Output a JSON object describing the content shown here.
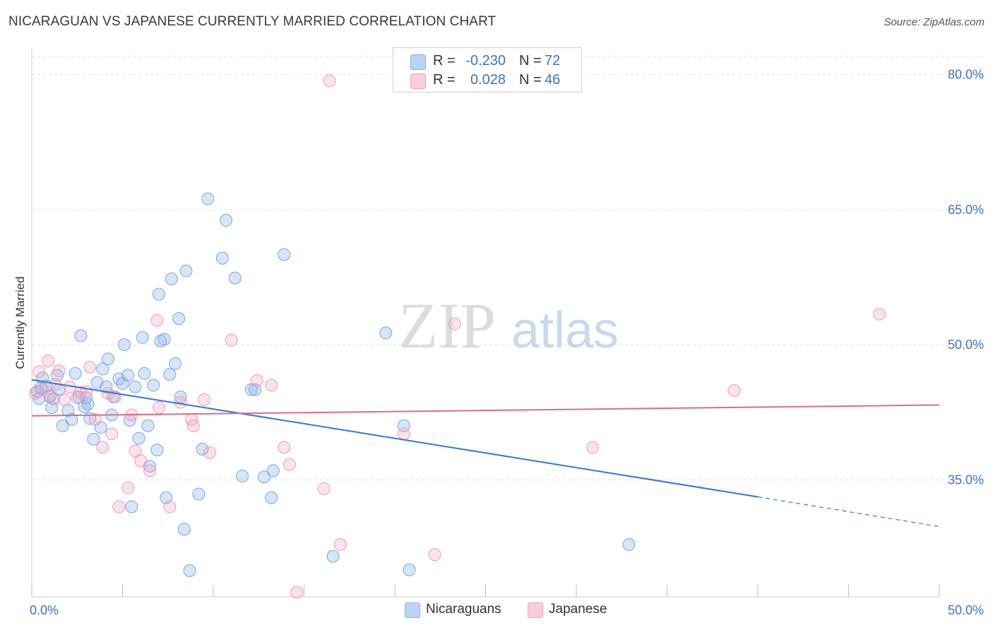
{
  "title": "NICARAGUAN VS JAPANESE CURRENTLY MARRIED CORRELATION CHART",
  "source": "Source: ZipAtlas.com",
  "watermark": {
    "zip": "ZIP",
    "atlas": "atlas"
  },
  "colors": {
    "blue": "#8ab4e8",
    "blue_line": "#3577d4",
    "pink": "#f0a3bd",
    "pink_line": "#e0698f",
    "axis_text": "#3b73c9"
  },
  "stats": [
    {
      "r_label": "R =",
      "r_value": "-0.230",
      "n_label": "N =",
      "n_value": "72"
    },
    {
      "r_label": "R =",
      "r_value": "0.028",
      "n_label": "N =",
      "n_value": "46"
    }
  ],
  "legend": [
    "Nicaraguans",
    "Japanese"
  ],
  "chart_data": {
    "type": "scatter",
    "title": "NICARAGUAN VS JAPANESE CURRENTLY MARRIED CORRELATION CHART",
    "xlabel": "",
    "ylabel": "Currently Married",
    "xlim": [
      0,
      50
    ],
    "ylim": [
      22,
      82
    ],
    "x_tick_labels": [
      "0.0%",
      "50.0%"
    ],
    "y_ticks": [
      35,
      50,
      65,
      80
    ],
    "y_tick_labels": [
      "35.0%",
      "50.0%",
      "65.0%",
      "80.0%"
    ],
    "grid": true,
    "series": [
      {
        "name": "Nicaraguans",
        "r": -0.23,
        "n": 72,
        "trend": {
          "x0": 0,
          "y0": 46.1,
          "x1": 40,
          "y1": 33.1,
          "dash_to_x": 50,
          "dash_to_y": 29.8
        },
        "points": [
          [
            0.3,
            44.8
          ],
          [
            0.5,
            45.2
          ],
          [
            0.6,
            46.3
          ],
          [
            0.8,
            45.4
          ],
          [
            1.0,
            44.3
          ],
          [
            1.1,
            43.0
          ],
          [
            1.2,
            44.0
          ],
          [
            1.4,
            46.6
          ],
          [
            1.7,
            41.0
          ],
          [
            2.0,
            42.7
          ],
          [
            2.2,
            41.7
          ],
          [
            2.4,
            46.8
          ],
          [
            2.6,
            44.2
          ],
          [
            2.7,
            51.0
          ],
          [
            2.9,
            43.1
          ],
          [
            3.1,
            43.4
          ],
          [
            3.2,
            41.8
          ],
          [
            3.4,
            39.5
          ],
          [
            3.6,
            45.8
          ],
          [
            3.8,
            40.8
          ],
          [
            3.9,
            47.3
          ],
          [
            4.1,
            45.3
          ],
          [
            4.2,
            48.4
          ],
          [
            4.4,
            42.2
          ],
          [
            4.5,
            44.2
          ],
          [
            4.8,
            46.2
          ],
          [
            5.0,
            45.7
          ],
          [
            5.1,
            50.0
          ],
          [
            5.3,
            46.6
          ],
          [
            5.4,
            41.6
          ],
          [
            5.5,
            32.0
          ],
          [
            5.7,
            45.3
          ],
          [
            5.9,
            39.6
          ],
          [
            6.1,
            50.8
          ],
          [
            6.2,
            46.8
          ],
          [
            6.4,
            41.0
          ],
          [
            6.5,
            36.5
          ],
          [
            6.7,
            45.5
          ],
          [
            6.9,
            38.3
          ],
          [
            7.0,
            55.6
          ],
          [
            7.1,
            50.4
          ],
          [
            7.3,
            50.6
          ],
          [
            7.4,
            33.0
          ],
          [
            7.6,
            46.7
          ],
          [
            7.7,
            57.3
          ],
          [
            7.9,
            47.9
          ],
          [
            8.1,
            52.9
          ],
          [
            8.2,
            44.2
          ],
          [
            8.4,
            29.5
          ],
          [
            8.5,
            58.2
          ],
          [
            8.7,
            24.9
          ],
          [
            9.2,
            33.4
          ],
          [
            9.4,
            38.4
          ],
          [
            9.7,
            66.2
          ],
          [
            10.5,
            59.6
          ],
          [
            10.7,
            63.8
          ],
          [
            11.2,
            57.4
          ],
          [
            11.6,
            35.4
          ],
          [
            12.1,
            45.0
          ],
          [
            12.3,
            45.0
          ],
          [
            12.8,
            35.3
          ],
          [
            13.2,
            33.0
          ],
          [
            13.3,
            36.0
          ],
          [
            13.9,
            60.0
          ],
          [
            16.6,
            26.5
          ],
          [
            19.5,
            51.3
          ],
          [
            20.5,
            41.0
          ],
          [
            20.8,
            25.0
          ],
          [
            32.9,
            27.8
          ],
          [
            0.4,
            44.0
          ],
          [
            1.5,
            45.0
          ],
          [
            3.0,
            44.1
          ]
        ]
      },
      {
        "name": "Japanese",
        "r": 0.028,
        "n": 46,
        "trend": {
          "x0": 0,
          "y0": 42.1,
          "x1": 50,
          "y1": 43.3
        },
        "points": [
          [
            0.2,
            44.6
          ],
          [
            0.4,
            47.0
          ],
          [
            0.6,
            45.0
          ],
          [
            0.9,
            48.2
          ],
          [
            1.0,
            44.2
          ],
          [
            1.3,
            45.6
          ],
          [
            1.5,
            47.1
          ],
          [
            1.8,
            43.9
          ],
          [
            2.1,
            45.3
          ],
          [
            2.5,
            44.1
          ],
          [
            2.7,
            44.7
          ],
          [
            3.0,
            44.8
          ],
          [
            3.2,
            47.5
          ],
          [
            3.5,
            41.7
          ],
          [
            3.9,
            38.6
          ],
          [
            4.2,
            44.6
          ],
          [
            4.4,
            40.1
          ],
          [
            4.6,
            44.2
          ],
          [
            4.8,
            32.0
          ],
          [
            5.3,
            34.1
          ],
          [
            5.5,
            42.2
          ],
          [
            5.7,
            38.2
          ],
          [
            6.0,
            37.1
          ],
          [
            6.5,
            36.0
          ],
          [
            6.9,
            52.7
          ],
          [
            7.0,
            43.0
          ],
          [
            7.6,
            32.0
          ],
          [
            8.2,
            43.6
          ],
          [
            8.8,
            41.7
          ],
          [
            8.9,
            41.0
          ],
          [
            9.5,
            43.9
          ],
          [
            9.8,
            38.0
          ],
          [
            11.0,
            50.5
          ],
          [
            12.4,
            46.0
          ],
          [
            13.2,
            45.5
          ],
          [
            13.9,
            38.6
          ],
          [
            14.2,
            36.7
          ],
          [
            14.6,
            22.5
          ],
          [
            16.1,
            34.0
          ],
          [
            16.4,
            79.3
          ],
          [
            17.0,
            27.8
          ],
          [
            20.5,
            40.1
          ],
          [
            22.2,
            26.7
          ],
          [
            23.3,
            52.3
          ],
          [
            30.9,
            38.6
          ],
          [
            38.7,
            44.9
          ]
        ],
        "extra_points": [
          [
            46.7,
            53.4
          ]
        ]
      }
    ]
  }
}
